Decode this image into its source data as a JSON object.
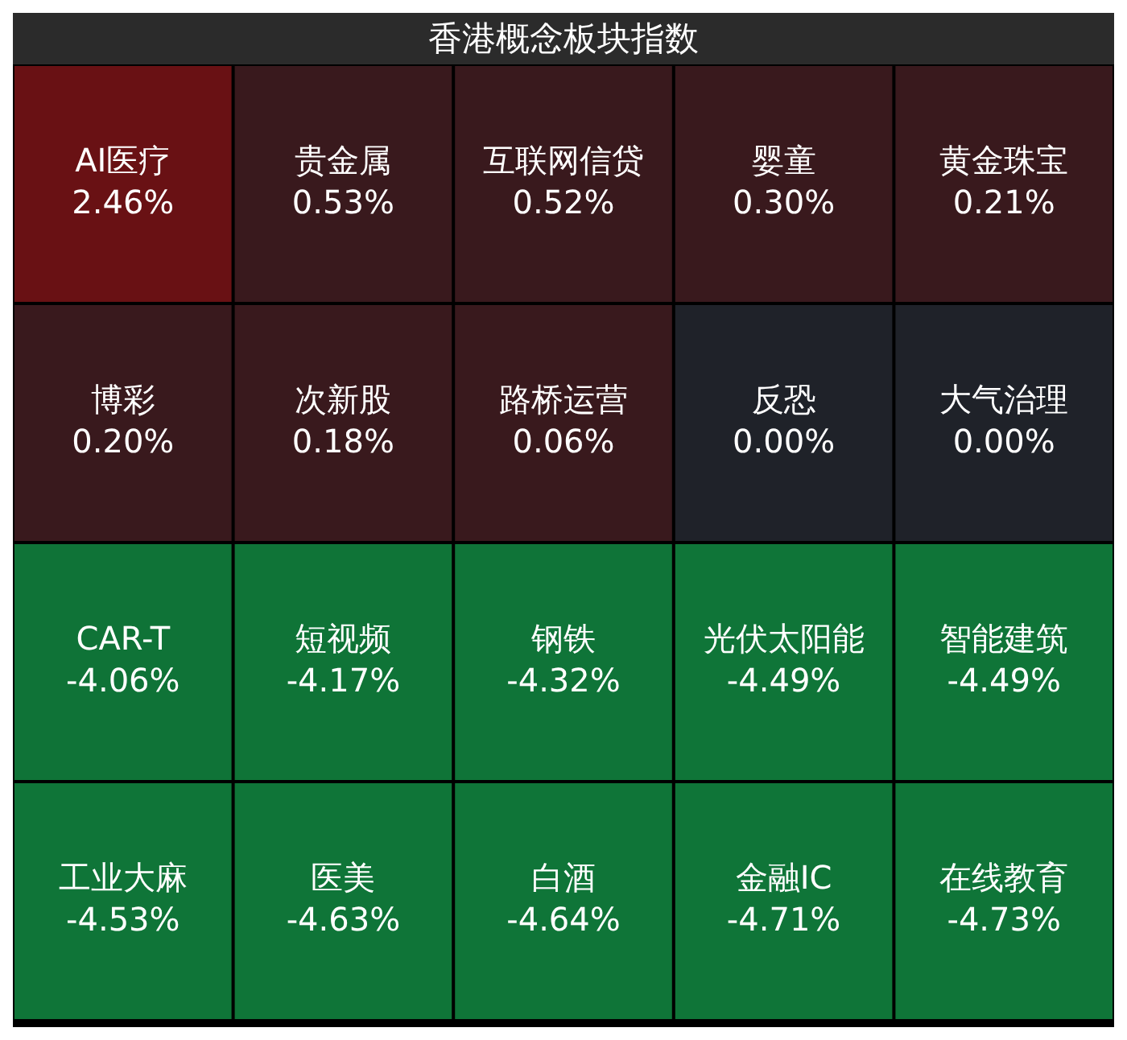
{
  "chart_data": {
    "type": "other",
    "title": "香港概念板块指数",
    "categories": [
      "AI医疗",
      "贵金属",
      "互联网信贷",
      "婴童",
      "黄金珠宝",
      "博彩",
      "次新股",
      "路桥运营",
      "反恐",
      "大气治理",
      "CAR-T",
      "短视频",
      "钢铁",
      "光伏太阳能",
      "智能建筑",
      "工业大麻",
      "医美",
      "白酒",
      "金融IC",
      "在线教育"
    ],
    "values": [
      2.46,
      0.53,
      0.52,
      0.3,
      0.21,
      0.2,
      0.18,
      0.06,
      0.0,
      0.0,
      -4.06,
      -4.17,
      -4.32,
      -4.49,
      -4.49,
      -4.53,
      -4.63,
      -4.64,
      -4.71,
      -4.73
    ],
    "value_labels": [
      "2.46%",
      "0.53%",
      "0.52%",
      "0.30%",
      "0.21%",
      "0.20%",
      "0.18%",
      "0.06%",
      "0.00%",
      "0.00%",
      "-4.06%",
      "-4.17%",
      "-4.32%",
      "-4.49%",
      "-4.49%",
      "-4.53%",
      "-4.63%",
      "-4.64%",
      "-4.71%",
      "-4.73%"
    ],
    "colors": [
      "#6e1215",
      "#3f1c20",
      "#3f1c20",
      "#3f1c20",
      "#3f1c20",
      "#3f1c20",
      "#3f1c20",
      "#3f1c20",
      "#22262d",
      "#22262d",
      "#0f7538",
      "#0f7538",
      "#0f7538",
      "#0f7538",
      "#0f7538",
      "#0f7538",
      "#0f7538",
      "#0f7538",
      "#0f7538",
      "#0f7538"
    ]
  }
}
